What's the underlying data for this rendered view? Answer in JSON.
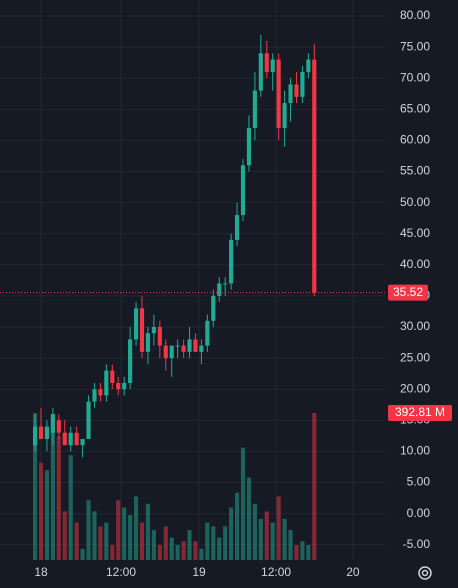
{
  "chart_data": {
    "type": "candlestick",
    "up_color": "#22ab94",
    "down_color": "#f23645",
    "x": [
      -1,
      0,
      1,
      2,
      3,
      4,
      5,
      6,
      7,
      8,
      9,
      10,
      11,
      12,
      13,
      14,
      15,
      16,
      17,
      18,
      19,
      20,
      21,
      22,
      23,
      24,
      25,
      26,
      27,
      28,
      29,
      30,
      31,
      32,
      33,
      34,
      35,
      36,
      37,
      38,
      39,
      40,
      41,
      42,
      43,
      44,
      45,
      46
    ],
    "open": [
      11,
      14,
      12,
      13,
      15,
      13,
      11,
      13,
      11,
      12,
      18,
      20,
      19,
      23,
      21,
      20,
      21,
      28,
      33,
      26,
      29,
      30,
      27,
      25,
      27,
      27,
      26,
      28,
      26,
      27,
      31,
      35,
      37,
      37,
      44,
      48,
      56,
      62,
      68,
      74,
      71,
      73,
      62,
      66,
      69,
      67,
      71,
      73
    ],
    "high": [
      16,
      17,
      15,
      17,
      16,
      15,
      14,
      14,
      12,
      19,
      21,
      21,
      24,
      24,
      22,
      22,
      30,
      34,
      35,
      30,
      32,
      31,
      28,
      27,
      28,
      28,
      30,
      29,
      28,
      32,
      36,
      38,
      38,
      45,
      50,
      57,
      64,
      71,
      77,
      76,
      74,
      74,
      68,
      70,
      71,
      72,
      74,
      75.5
    ],
    "low": [
      10,
      12,
      10,
      11,
      12,
      11,
      10,
      11,
      9,
      12,
      17,
      18,
      18,
      20,
      19,
      19,
      20,
      27,
      25,
      24,
      27,
      25,
      23,
      22,
      25,
      25,
      25,
      26,
      24,
      26,
      30,
      34,
      35,
      36,
      43,
      47,
      55,
      60,
      67,
      70,
      68,
      60,
      59,
      63,
      66,
      66,
      70,
      35
    ],
    "close": [
      14,
      12,
      14,
      16,
      13,
      11,
      13,
      11,
      12,
      18,
      20,
      19,
      23,
      21,
      20,
      21,
      28,
      33,
      26,
      29,
      30,
      27,
      25,
      27,
      27,
      26,
      28,
      26,
      27,
      31,
      35,
      37,
      37,
      44,
      48,
      56,
      62,
      68,
      74,
      71,
      73,
      62,
      66,
      69,
      67,
      71,
      73,
      35.52
    ],
    "volume": [
      392,
      260,
      240,
      380,
      330,
      130,
      280,
      100,
      30,
      160,
      130,
      90,
      100,
      40,
      160,
      140,
      120,
      170,
      100,
      150,
      80,
      40,
      90,
      60,
      40,
      50,
      80,
      50,
      30,
      100,
      90,
      60,
      90,
      140,
      180,
      300,
      220,
      150,
      110,
      130,
      100,
      170,
      110,
      80,
      40,
      50,
      40,
      392.81
    ],
    "last_price": {
      "value": 35.52,
      "label": "35.52"
    },
    "last_volume": {
      "value": 392.81,
      "label": "392.81 M"
    },
    "ylim": [
      -7.46,
      82.57
    ],
    "vlim": [
      0,
      1496
    ],
    "xlim": [
      -6.9,
      57.9
    ],
    "yticks": [
      {
        "value": 80,
        "label": "80.00"
      },
      {
        "value": 75,
        "label": "75.00"
      },
      {
        "value": 70,
        "label": "70.00"
      },
      {
        "value": 65,
        "label": "65.00"
      },
      {
        "value": 60,
        "label": "60.00"
      },
      {
        "value": 55,
        "label": "55.00"
      },
      {
        "value": 50,
        "label": "50.00"
      },
      {
        "value": 45,
        "label": "45.00"
      },
      {
        "value": 40,
        "label": "40.00"
      },
      {
        "value": 35,
        "label": "35.00"
      },
      {
        "value": 30,
        "label": "30.00"
      },
      {
        "value": 25,
        "label": "25.00"
      },
      {
        "value": 20,
        "label": "20.00"
      },
      {
        "value": 15,
        "label": "15.00"
      },
      {
        "value": 10,
        "label": "10.00"
      },
      {
        "value": 5,
        "label": "5.00"
      },
      {
        "value": 0,
        "label": "0.00"
      },
      {
        "value": -5,
        "label": "-5.00"
      }
    ],
    "xticks": [
      {
        "value": 0,
        "label": "18"
      },
      {
        "value": 13.47,
        "label": "12:00"
      },
      {
        "value": 26.6,
        "label": "19"
      },
      {
        "value": 39.56,
        "label": "12:00"
      },
      {
        "value": 52.5,
        "label": "20"
      }
    ],
    "grid": true
  }
}
